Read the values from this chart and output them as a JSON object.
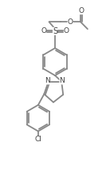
{
  "background_color": "#ffffff",
  "line_color": "#888888",
  "bond_width": 1.3,
  "figsize": [
    1.38,
    2.33
  ],
  "dpi": 100,
  "xlim": [
    0,
    10
  ],
  "ylim": [
    0,
    17
  ]
}
